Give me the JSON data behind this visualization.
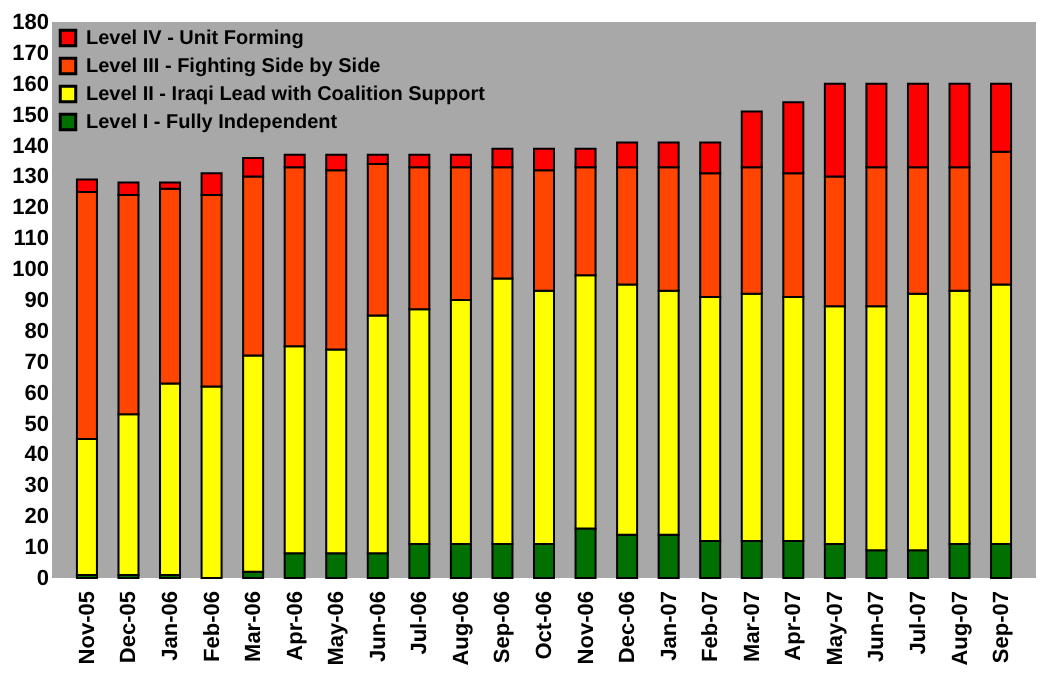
{
  "chart_data": {
    "type": "bar",
    "stacked": true,
    "categories": [
      "Nov-05",
      "Dec-05",
      "Jan-06",
      "Feb-06",
      "Mar-06",
      "Apr-06",
      "May-06",
      "Jun-06",
      "Jul-06",
      "Aug-06",
      "Sep-06",
      "Oct-06",
      "Nov-06",
      "Dec-06",
      "Jan-07",
      "Feb-07",
      "Mar-07",
      "Apr-07",
      "May-07",
      "Jun-07",
      "Jul-07",
      "Aug-07",
      "Sep-07"
    ],
    "series": [
      {
        "name": "Level I  -  Fully Independent",
        "color": "#007000",
        "values": [
          1,
          1,
          1,
          0,
          2,
          8,
          8,
          8,
          11,
          11,
          11,
          11,
          16,
          14,
          14,
          12,
          12,
          12,
          11,
          9,
          9,
          11,
          11
        ]
      },
      {
        "name": "Level II  -  Iraqi Lead with Coalition Support",
        "color": "#ffff00",
        "values": [
          44,
          52,
          62,
          62,
          70,
          67,
          66,
          77,
          76,
          79,
          86,
          82,
          82,
          81,
          79,
          79,
          80,
          79,
          77,
          79,
          83,
          82,
          84
        ]
      },
      {
        "name": "Level III -  Fighting Side by Side",
        "color": "#ff4500",
        "values": [
          80,
          71,
          63,
          62,
          58,
          58,
          58,
          49,
          46,
          43,
          36,
          39,
          35,
          38,
          40,
          40,
          41,
          40,
          42,
          45,
          41,
          40,
          43
        ]
      },
      {
        "name": "Level IV -  Unit Forming",
        "color": "#ff0000",
        "values": [
          4,
          4,
          2,
          7,
          6,
          4,
          5,
          3,
          4,
          4,
          6,
          7,
          6,
          8,
          8,
          10,
          18,
          23,
          30,
          27,
          27,
          27,
          22
        ]
      }
    ],
    "ylim": [
      0,
      180
    ],
    "yticks": [
      0,
      10,
      20,
      30,
      40,
      50,
      60,
      70,
      80,
      90,
      100,
      110,
      120,
      130,
      140,
      150,
      160,
      170,
      180
    ],
    "grid": false,
    "legend": "top left"
  }
}
